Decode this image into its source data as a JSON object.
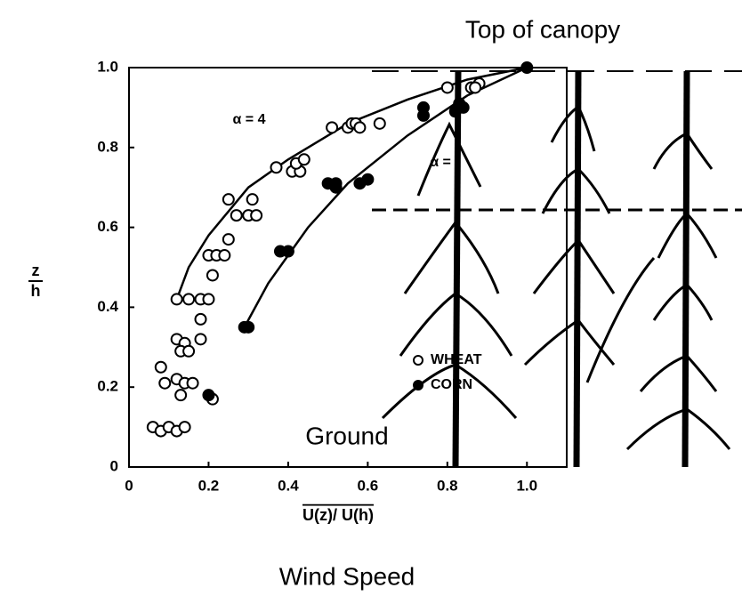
{
  "chart_data": {
    "type": "scatter",
    "title": "Top of canopy",
    "annotations": [
      "Ground",
      "Wind Speed"
    ],
    "xlabel": "U(z)/ U(h)",
    "ylabel": {
      "numerator": "z",
      "denominator": "h"
    },
    "xlim": [
      0,
      1.1
    ],
    "ylim": [
      0,
      1
    ],
    "xticks": [
      0,
      0.2,
      0.4,
      0.6,
      0.8,
      {
        "value": 1,
        "label": "1.0"
      }
    ],
    "yticks": [
      0,
      0.2,
      0.4,
      0.6,
      0.8,
      {
        "value": 1,
        "label": "1.0"
      }
    ],
    "series": [
      {
        "name": "WHEAT",
        "color": "#000",
        "marker": "open",
        "x": [
          0.06,
          0.08,
          0.1,
          0.12,
          0.14,
          0.08,
          0.09,
          0.12,
          0.14,
          0.16,
          0.13,
          0.12,
          0.14,
          0.13,
          0.15,
          0.18,
          0.12,
          0.15,
          0.18,
          0.18,
          0.2,
          0.2,
          0.22,
          0.24,
          0.21,
          0.25,
          0.25,
          0.27,
          0.3,
          0.32,
          0.31,
          0.21,
          0.37,
          0.41,
          0.43,
          0.42,
          0.44,
          0.51,
          0.55,
          0.56,
          0.57,
          0.58,
          0.63,
          0.8,
          0.86,
          0.88,
          0.87
        ],
        "y": [
          0.1,
          0.09,
          0.1,
          0.09,
          0.1,
          0.25,
          0.21,
          0.22,
          0.21,
          0.21,
          0.18,
          0.32,
          0.31,
          0.29,
          0.29,
          0.32,
          0.42,
          0.42,
          0.37,
          0.42,
          0.42,
          0.53,
          0.53,
          0.53,
          0.48,
          0.57,
          0.67,
          0.63,
          0.63,
          0.63,
          0.67,
          0.17,
          0.75,
          0.74,
          0.74,
          0.76,
          0.77,
          0.85,
          0.85,
          0.86,
          0.86,
          0.85,
          0.86,
          0.95,
          0.95,
          0.96,
          0.95
        ]
      },
      {
        "name": "CORN",
        "color": "#000",
        "marker": "filled",
        "x": [
          0.29,
          0.3,
          0.38,
          0.4,
          0.5,
          0.52,
          0.52,
          0.58,
          0.6,
          0.74,
          0.74,
          0.82,
          0.84,
          0.83,
          1.0,
          0.2
        ],
        "y": [
          0.35,
          0.35,
          0.54,
          0.54,
          0.71,
          0.71,
          0.7,
          0.71,
          0.72,
          0.88,
          0.9,
          0.89,
          0.9,
          0.91,
          1.0,
          0.18
        ]
      }
    ],
    "curves": [
      {
        "label": "α = 4",
        "x": [
          0.12,
          0.15,
          0.2,
          0.3,
          0.4,
          0.55,
          0.7,
          0.85,
          1.0
        ],
        "y": [
          0.42,
          0.5,
          0.58,
          0.7,
          0.77,
          0.86,
          0.92,
          0.97,
          1.0
        ]
      },
      {
        "label": "α =",
        "x": [
          0.29,
          0.35,
          0.45,
          0.55,
          0.7,
          0.85,
          1.0
        ],
        "y": [
          0.35,
          0.46,
          0.6,
          0.71,
          0.83,
          0.93,
          1.0
        ]
      }
    ]
  }
}
